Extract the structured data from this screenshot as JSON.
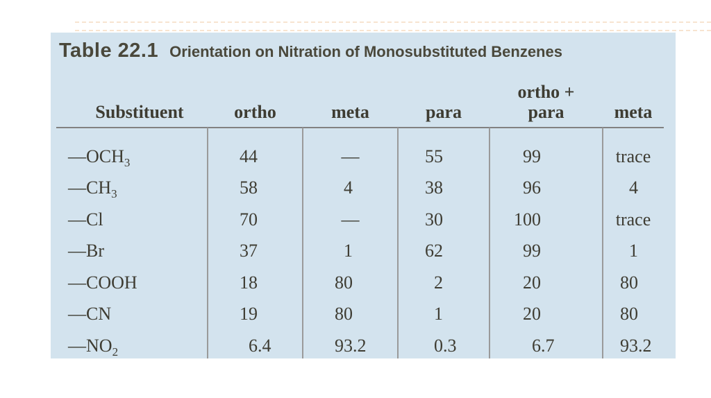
{
  "colors": {
    "page_background": "#ffffff",
    "panel_background": "#d3e3ee",
    "title_text": "#4a483b",
    "body_text": "#3e3c32",
    "grid_line": "#8f8f8f",
    "decor_line": "#f2d6b7"
  },
  "table": {
    "title": "Table 22.1",
    "subtitle": "Orientation on Nitration of Monosubstituted Benzenes",
    "headers": {
      "substituent": "Substituent",
      "ortho": "ortho",
      "meta": "meta",
      "para": "para",
      "ortho_para_line1": "ortho +",
      "ortho_para_line2": "para",
      "meta_total": "meta"
    },
    "rows": [
      {
        "sub_prefix": "—OCH",
        "sub_script": "3",
        "ortho": {
          "i": "44"
        },
        "meta": {
          "c": "—"
        },
        "para": {
          "i": "55"
        },
        "ortho_para": {
          "i": "99"
        },
        "meta_last": {
          "c": "trace"
        }
      },
      {
        "sub_prefix": "—CH",
        "sub_script": "3",
        "ortho": {
          "i": "58"
        },
        "meta": {
          "i": "4"
        },
        "para": {
          "i": "38"
        },
        "ortho_para": {
          "i": "96"
        },
        "meta_last": {
          "i": "4"
        }
      },
      {
        "sub_prefix": "—Cl",
        "sub_script": "",
        "ortho": {
          "i": "70"
        },
        "meta": {
          "c": "—"
        },
        "para": {
          "i": "30"
        },
        "ortho_para": {
          "i": "100"
        },
        "meta_last": {
          "c": "trace"
        }
      },
      {
        "sub_prefix": "—Br",
        "sub_script": "",
        "ortho": {
          "i": "37"
        },
        "meta": {
          "i": "1"
        },
        "para": {
          "i": "62"
        },
        "ortho_para": {
          "i": "99"
        },
        "meta_last": {
          "i": "1"
        }
      },
      {
        "sub_prefix": "—COOH",
        "sub_script": "",
        "ortho": {
          "i": "18"
        },
        "meta": {
          "i": "80"
        },
        "para": {
          "i": "2"
        },
        "ortho_para": {
          "i": "20"
        },
        "meta_last": {
          "i": "80"
        }
      },
      {
        "sub_prefix": "—CN",
        "sub_script": "",
        "ortho": {
          "i": "19"
        },
        "meta": {
          "i": "80"
        },
        "para": {
          "i": "1"
        },
        "ortho_para": {
          "i": "20"
        },
        "meta_last": {
          "i": "80"
        }
      },
      {
        "sub_prefix": "—NO",
        "sub_script": "2",
        "ortho": {
          "i": "6",
          "f": ".4"
        },
        "meta": {
          "i": "93",
          "f": ".2"
        },
        "para": {
          "i": "0",
          "f": ".3"
        },
        "ortho_para": {
          "i": "6",
          "f": ".7"
        },
        "meta_last": {
          "i": "93",
          "f": ".2"
        }
      }
    ]
  }
}
